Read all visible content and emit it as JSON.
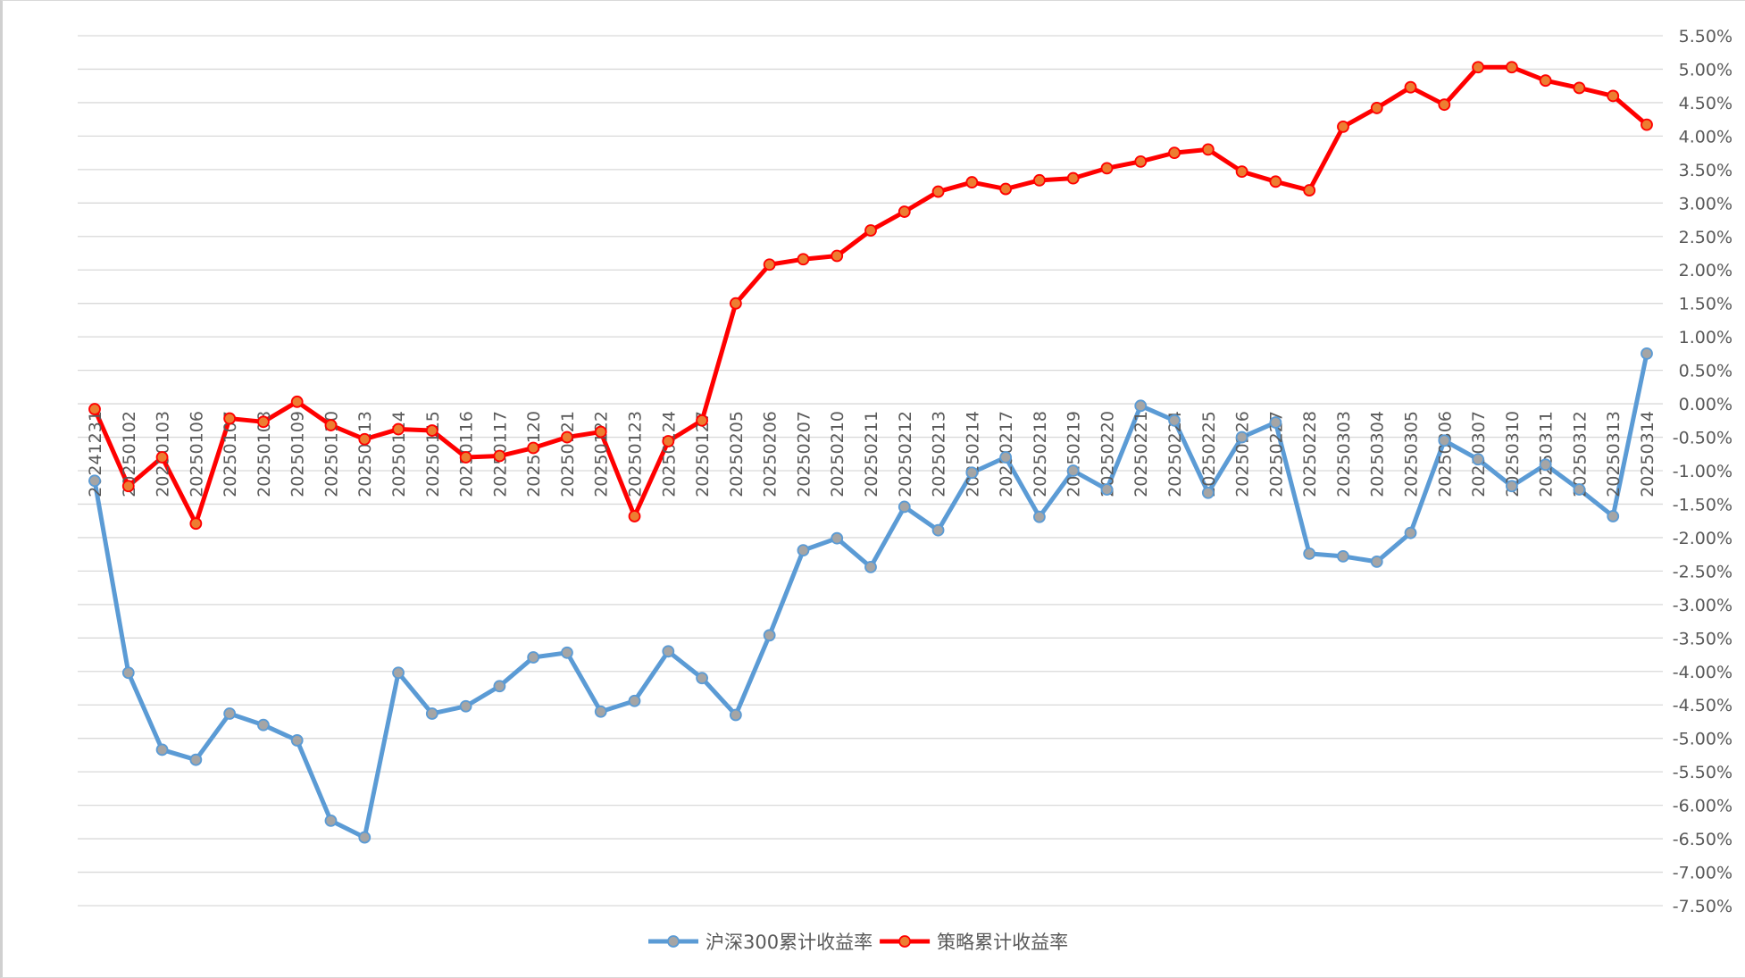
{
  "chart_data": {
    "type": "line",
    "title": "",
    "xlabel": "",
    "ylabel": "",
    "ylim": [
      -7.5,
      5.5
    ],
    "y_tick_step": 0.5,
    "y_format": "percent_2dp",
    "y_axis_position": "right",
    "grid": "horizontal",
    "legend_position": "bottom",
    "categories": [
      "20241231",
      "20250102",
      "20250103",
      "20250106",
      "20250107",
      "20250108",
      "20250109",
      "20250110",
      "20250113",
      "20250114",
      "20250115",
      "20250116",
      "20250117",
      "20250120",
      "20250121",
      "20250122",
      "20250123",
      "20250124",
      "20250127",
      "20250205",
      "20250206",
      "20250207",
      "20250210",
      "20250211",
      "20250212",
      "20250213",
      "20250214",
      "20250217",
      "20250218",
      "20250219",
      "20250220",
      "20250221",
      "20250224",
      "20250225",
      "20250226",
      "20250227",
      "20250228",
      "20250303",
      "20250304",
      "20250305",
      "20250306",
      "20250307",
      "20250310",
      "20250311",
      "20250312",
      "20250313",
      "20250314"
    ],
    "series": [
      {
        "name": "沪深300累计收益率",
        "color": "#5b9bd5",
        "marker_color": "#a5a5a5",
        "values": [
          -1.15,
          -4.02,
          -5.17,
          -5.32,
          -4.63,
          -4.8,
          -5.03,
          -6.23,
          -6.48,
          -4.02,
          -4.63,
          -4.52,
          -4.22,
          -3.79,
          -3.72,
          -4.6,
          -4.44,
          -3.7,
          -4.1,
          -4.65,
          -3.46,
          -2.19,
          -2.01,
          -2.44,
          -1.54,
          -1.89,
          -1.03,
          -0.8,
          -1.69,
          -1.0,
          -1.28,
          -0.03,
          -0.25,
          -1.33,
          -0.5,
          -0.28,
          -2.24,
          -2.28,
          -2.36,
          -1.93,
          -0.55,
          -0.83,
          -1.23,
          -0.91,
          -1.28,
          -1.68,
          0.75
        ]
      },
      {
        "name": "策略累计收益率",
        "color": "#ff0000",
        "marker_color": "#ed7d31",
        "values": [
          -0.08,
          -1.23,
          -0.8,
          -1.79,
          -0.22,
          -0.27,
          0.03,
          -0.32,
          -0.53,
          -0.38,
          -0.4,
          -0.8,
          -0.78,
          -0.66,
          -0.5,
          -0.42,
          -1.68,
          -0.56,
          -0.25,
          1.5,
          2.08,
          2.16,
          2.21,
          2.59,
          2.87,
          3.17,
          3.31,
          3.21,
          3.34,
          3.37,
          3.52,
          3.62,
          3.75,
          3.8,
          3.47,
          3.32,
          3.19,
          4.14,
          4.42,
          4.73,
          4.47,
          5.03,
          5.03,
          4.83,
          4.72,
          4.6,
          4.17
        ]
      }
    ]
  }
}
